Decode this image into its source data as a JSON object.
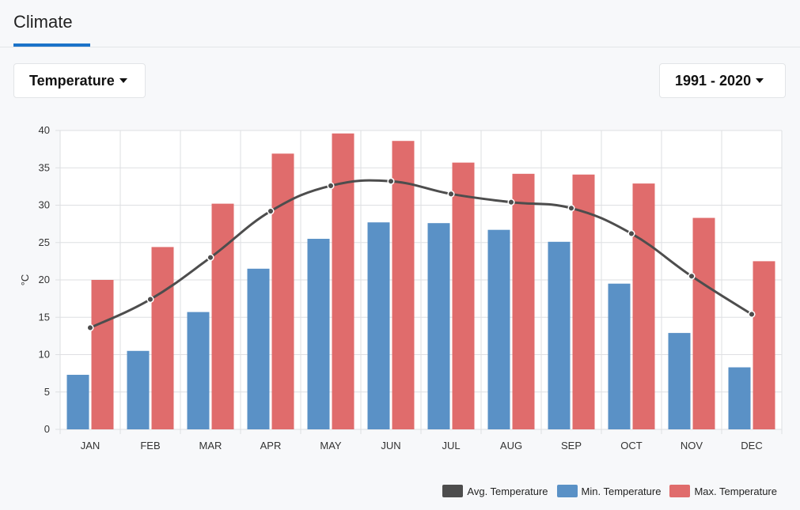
{
  "tab": {
    "label": "Climate"
  },
  "controls": {
    "metric_label": "Temperature",
    "period_label": "1991 - 2020"
  },
  "colors": {
    "accent": "#1b73c9",
    "avg": "#4d4d4d",
    "min": "#5a91c6",
    "max": "#e06c6c"
  },
  "chart_data": {
    "type": "bar",
    "categories": [
      "JAN",
      "FEB",
      "MAR",
      "APR",
      "MAY",
      "JUN",
      "JUL",
      "AUG",
      "SEP",
      "OCT",
      "NOV",
      "DEC"
    ],
    "ylabel": "°C",
    "ylim": [
      0,
      40
    ],
    "yticks": [
      0,
      5,
      10,
      15,
      20,
      25,
      30,
      35,
      40
    ],
    "grid": true,
    "legend_position": "bottom-right",
    "series": [
      {
        "name": "Avg. Temperature",
        "type": "line",
        "values": [
          13.6,
          17.4,
          23.0,
          29.2,
          32.6,
          33.2,
          31.5,
          30.4,
          29.6,
          26.2,
          20.5,
          15.4
        ]
      },
      {
        "name": "Min. Temperature",
        "type": "bar",
        "values": [
          7.3,
          10.5,
          15.7,
          21.5,
          25.5,
          27.7,
          27.6,
          26.7,
          25.1,
          19.5,
          12.9,
          8.3
        ]
      },
      {
        "name": "Max. Temperature",
        "type": "bar",
        "values": [
          20.0,
          24.4,
          30.2,
          36.9,
          39.6,
          38.6,
          35.7,
          34.2,
          34.1,
          32.9,
          28.3,
          22.5
        ]
      }
    ]
  }
}
